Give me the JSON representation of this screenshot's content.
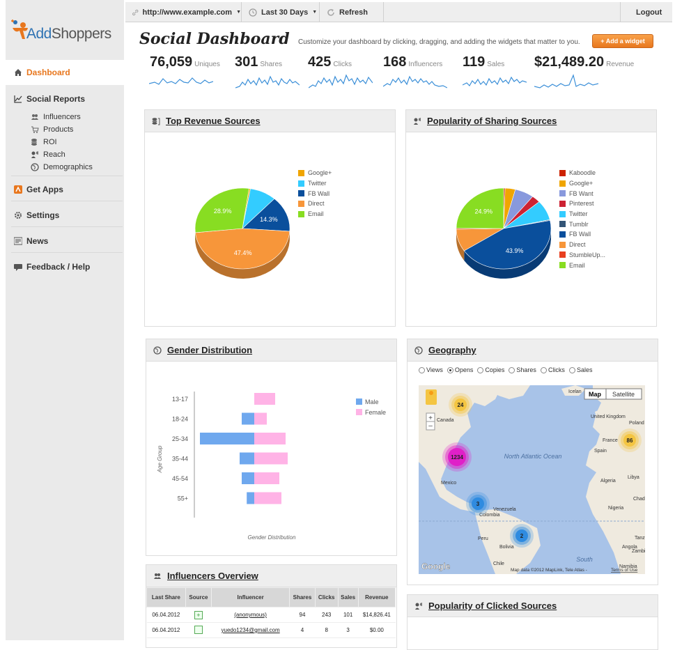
{
  "topbar": {
    "url": "http://www.example.com",
    "range": "Last 30 Days",
    "refresh": "Refresh",
    "logout": "Logout"
  },
  "brand": {
    "name_a": "Add",
    "name_b": "Shoppers"
  },
  "sidebar": {
    "dashboard": "Dashboard",
    "social_reports": "Social Reports",
    "sub": [
      "Influencers",
      "Products",
      "ROI",
      "Reach",
      "Demographics"
    ],
    "get_apps": "Get Apps",
    "settings": "Settings",
    "news": "News",
    "feedback": "Feedback / Help"
  },
  "header": {
    "title": "Social Dashboard",
    "subtitle": "Customize your dashboard by clicking, dragging, and adding the widgets that matter to you.",
    "add_widget": "+ Add a widget"
  },
  "stats": [
    {
      "value": "76,059",
      "label": "Uniques"
    },
    {
      "value": "301",
      "label": "Shares"
    },
    {
      "value": "425",
      "label": "Clicks"
    },
    {
      "value": "168",
      "label": "Influencers"
    },
    {
      "value": "119",
      "label": "Sales"
    },
    {
      "value": "$21,489.20",
      "label": "Revenue"
    }
  ],
  "panels": {
    "top_revenue": "Top Revenue Sources",
    "sharing": "Popularity of Sharing Sources",
    "gender": "Gender Distribution",
    "geo": "Geography",
    "influencers": "Influencers Overview",
    "clicked": "Popularity of Clicked Sources"
  },
  "chart_data": [
    {
      "type": "pie",
      "categories": [
        "Google+",
        "Twitter",
        "FB Wall",
        "Direct",
        "Email"
      ],
      "values": [
        0.5,
        9.1,
        14.3,
        47.4,
        28.9
      ],
      "labels_shown": [
        "14.3%",
        "47.4%",
        "28.9%"
      ],
      "colors": [
        "#f0a500",
        "#33ccff",
        "#0a4f9c",
        "#f7963a",
        "#88dd22"
      ]
    },
    {
      "type": "pie",
      "categories": [
        "Kaboodle",
        "Google+",
        "FB Want",
        "Pinterest",
        "Twitter",
        "Tumblr",
        "FB Wall",
        "Direct",
        "StumbleUp...",
        "Email"
      ],
      "values": [
        0.5,
        3.5,
        6.5,
        3.0,
        8.0,
        0.3,
        43.9,
        9.0,
        0.4,
        24.9
      ],
      "labels_shown": [
        "43.9%",
        "24.9%"
      ],
      "colors": [
        "#cc2200",
        "#f0a500",
        "#8899dd",
        "#cc2233",
        "#33ccff",
        "#335577",
        "#0a4f9c",
        "#f7963a",
        "#e84020",
        "#88dd22"
      ]
    },
    {
      "type": "bar",
      "categories": [
        "13-17",
        "18-24",
        "25-34",
        "35-44",
        "45-54",
        "55+"
      ],
      "series": [
        {
          "name": "Male",
          "values": [
            0,
            3,
            13,
            3.5,
            3,
            1.8
          ]
        },
        {
          "name": "Female",
          "values": [
            5,
            3,
            7.5,
            8,
            6,
            6.5
          ]
        }
      ],
      "ylabel": "Age Group",
      "xlabel": "Gender Distribution",
      "colors": [
        "#6fa8ee",
        "#ffb3e6"
      ]
    }
  ],
  "geo": {
    "options": [
      "Views",
      "Opens",
      "Copies",
      "Shares",
      "Clicks",
      "Sales"
    ],
    "selected": "Opens",
    "map_btn": "Map",
    "sat_btn": "Satellite",
    "clusters": [
      "24",
      "86",
      "1234",
      "3",
      "2"
    ],
    "places": [
      "Canada",
      "United Kingdom",
      "Poland",
      "France",
      "Spain",
      "Mexico",
      "Colombia",
      "Venezuela",
      "Peru",
      "Bolivia",
      "Chile",
      "Libya",
      "Algeria",
      "Chad",
      "Nigeria",
      "Tanzania",
      "Angola",
      "Zambia",
      "Namibia"
    ],
    "ocean": "North Atlantic Ocean",
    "south": "South",
    "footer": "Map data ©2012 MapLink, Tele Atlas -",
    "terms": "Terms of Use",
    "google": "Google",
    "iceland": "Icelan"
  },
  "table": {
    "headers": [
      "Last Share",
      "Source",
      "Influencer",
      "Shares",
      "Clicks",
      "Sales",
      "Revenue"
    ],
    "rows": [
      [
        "06.04.2012",
        "+",
        "(anonymous)",
        "94",
        "243",
        "101",
        "$14,826.41"
      ],
      [
        "06.04.2012",
        "",
        "yuedo1234@gmail.com",
        "4",
        "8",
        "3",
        "$0.00"
      ]
    ]
  }
}
